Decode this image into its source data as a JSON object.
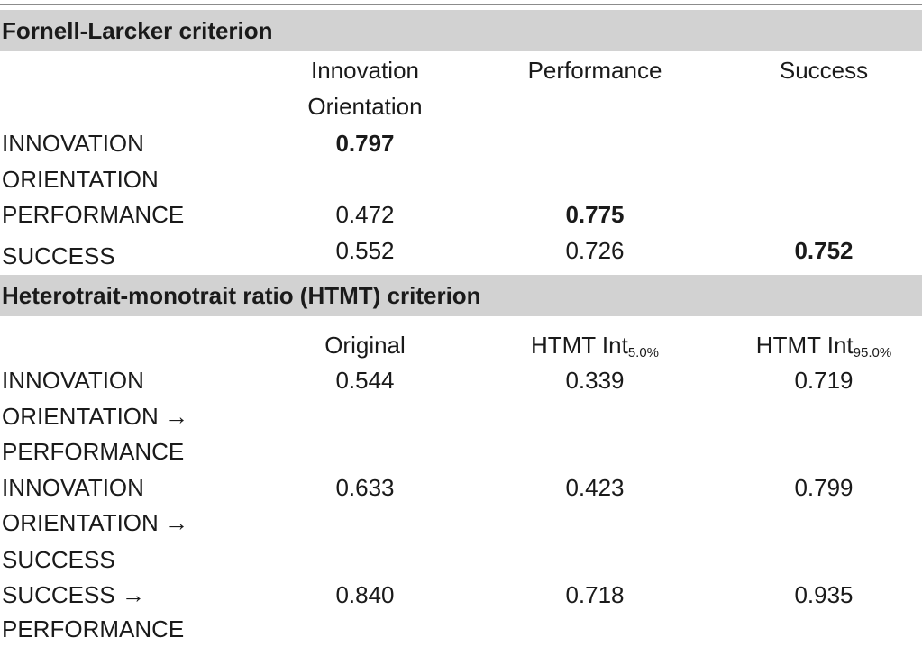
{
  "fornell": {
    "title": "Fornell-Larcker criterion",
    "col1_line1": "Innovation",
    "col1_line2": "Orientation",
    "col2": "Performance",
    "col3": "Success",
    "rows": [
      {
        "label_line1": "INNOVATION",
        "label_line2": "ORIENTATION",
        "v1": "0.797",
        "v2": "",
        "v3": ""
      },
      {
        "label_line1": "PERFORMANCE",
        "v1": "0.472",
        "v2": "0.775",
        "v3": ""
      },
      {
        "label_line1": "SUCCESS",
        "v1": "0.552",
        "v2": "0.726",
        "v3": "0.752"
      }
    ]
  },
  "htmt": {
    "title": "Heterotrait-monotrait ratio (HTMT) criterion",
    "col1": "Original",
    "col2_base": "HTMT Int",
    "col2_sub": "5.0%",
    "col3_base": "HTMT Int",
    "col3_sub": "95.0%",
    "rows": [
      {
        "label_line1": "INNOVATION",
        "label_line2": "ORIENTATION →",
        "label_line3": "PERFORMANCE",
        "v1": "0.544",
        "v2": "0.339",
        "v3": "0.719"
      },
      {
        "label_line1": "INNOVATION",
        "label_line2": "ORIENTATION →",
        "label_line3": "SUCCESS",
        "v1": "0.633",
        "v2": "0.423",
        "v3": "0.799"
      },
      {
        "label_line1": "SUCCESS →",
        "label_line2": "PERFORMANCE",
        "v1": "0.840",
        "v2": "0.718",
        "v3": "0.935"
      }
    ]
  }
}
